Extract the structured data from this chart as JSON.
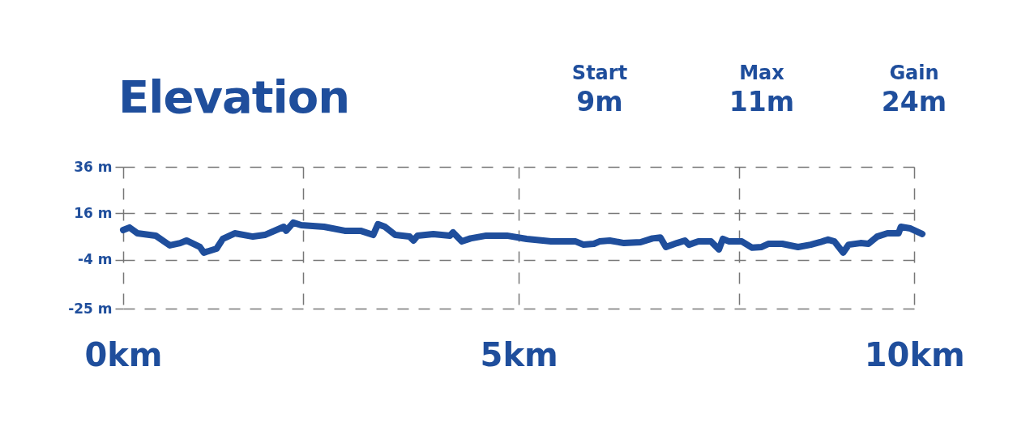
{
  "chart_data": {
    "type": "line",
    "title": "Elevation",
    "annotations": [
      "Start",
      "9m",
      "Max",
      "11m",
      "Gain",
      "24m"
    ],
    "x": [
      0,
      0.08,
      0.18,
      0.41,
      0.59,
      0.72,
      0.8,
      0.97,
      1.02,
      1.18,
      1.26,
      1.41,
      1.64,
      1.79,
      2.03,
      2.06,
      2.15,
      2.25,
      2.54,
      2.8,
      3.0,
      3.16,
      3.22,
      3.31,
      3.44,
      3.62,
      3.67,
      3.72,
      3.92,
      4.13,
      4.17,
      4.28,
      4.39,
      4.59,
      4.85,
      5.1,
      5.41,
      5.72,
      5.82,
      5.95,
      6.02,
      6.15,
      6.33,
      6.54,
      6.69,
      6.79,
      6.86,
      7.0,
      7.1,
      7.15,
      7.27,
      7.43,
      7.53,
      7.58,
      7.66,
      7.82,
      7.95,
      8.07,
      8.16,
      8.33,
      8.53,
      8.69,
      8.81,
      8.91,
      8.99,
      9.1,
      9.17,
      9.32,
      9.42,
      9.53,
      9.66,
      9.8,
      9.83,
      9.95,
      10.1
    ],
    "series": [
      {
        "color": "#1f4e9c",
        "values": [
          8.8,
          9.9,
          7.4,
          6.4,
          2.2,
          3.2,
          4.3,
          1.5,
          -0.9,
          0.8,
          5.0,
          7.4,
          6.0,
          6.7,
          10.2,
          8.5,
          12.0,
          10.9,
          10.2,
          8.5,
          8.5,
          6.7,
          11.3,
          10.2,
          6.7,
          6.0,
          4.3,
          6.4,
          7.1,
          6.4,
          7.8,
          3.9,
          5.2,
          6.4,
          6.4,
          5.0,
          3.9,
          3.9,
          2.5,
          2.9,
          3.9,
          4.3,
          3.2,
          3.6,
          5.2,
          5.6,
          1.5,
          3.2,
          4.3,
          2.5,
          3.9,
          3.9,
          0.5,
          5.0,
          3.9,
          3.9,
          1.2,
          1.5,
          2.9,
          2.9,
          1.5,
          2.5,
          3.6,
          4.7,
          3.9,
          -0.9,
          2.5,
          3.2,
          2.9,
          6.0,
          7.4,
          7.4,
          10.2,
          9.5,
          7.1
        ]
      }
    ],
    "xlim": [
      0,
      10.1
    ],
    "xticks": [
      {
        "value": 0,
        "label": "0km"
      },
      {
        "value": 2.27,
        "label": null
      },
      {
        "value": 5,
        "label": "5km"
      },
      {
        "value": 7.79,
        "label": null
      },
      {
        "value": 10,
        "label": "10km"
      }
    ],
    "ylim": [
      -25,
      36
    ],
    "yticks": [
      {
        "value": -25,
        "label": "-25 m"
      },
      {
        "value": -4,
        "label": "-4 m"
      },
      {
        "value": 16,
        "label": "16 m"
      },
      {
        "value": 36,
        "label": "36 m"
      }
    ],
    "grid": true,
    "marker": "none",
    "line_style": "solid"
  }
}
